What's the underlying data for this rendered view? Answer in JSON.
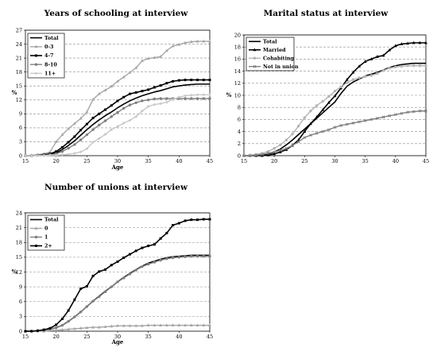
{
  "chart_data": [
    {
      "type": "line",
      "title": "Years of schooling at interview",
      "xlabel": "Age",
      "ylabel": "%",
      "xlim": [
        15,
        45
      ],
      "ylim": [
        0,
        27
      ],
      "x_ticks": [
        15,
        20,
        25,
        30,
        35,
        40,
        45
      ],
      "y_ticks": [
        0,
        3,
        6,
        9,
        12,
        15,
        18,
        21,
        24,
        27
      ],
      "grid": "horizontal dashed",
      "legend": "top-left",
      "series": [
        {
          "name": "Total",
          "color": "#000000",
          "marker": "none",
          "width": 1.6,
          "x": [
            15,
            16,
            17,
            18,
            19,
            20,
            21,
            22,
            23,
            24,
            25,
            26,
            27,
            28,
            29,
            30,
            31,
            32,
            33,
            34,
            35,
            36,
            37,
            38,
            39,
            40,
            41,
            42,
            43,
            44,
            45
          ],
          "values": [
            0,
            0,
            0.1,
            0.1,
            0.3,
            0.6,
            1.3,
            2.2,
            3.2,
            4.4,
            5.6,
            6.7,
            7.7,
            8.6,
            9.4,
            10.3,
            11.1,
            11.8,
            12.4,
            12.9,
            13.3,
            13.7,
            14.0,
            14.4,
            14.8,
            15.0,
            15.2,
            15.3,
            15.4,
            15.4,
            15.4
          ]
        },
        {
          "name": "0-3",
          "color": "#a6a6a6",
          "marker": "triangle",
          "width": 1.4,
          "x": [
            15,
            16,
            17,
            18,
            19,
            20,
            21,
            22,
            23,
            24,
            25,
            26,
            27,
            28,
            29,
            30,
            31,
            32,
            33,
            34,
            35,
            36,
            37,
            38,
            39,
            40,
            41,
            42,
            43,
            44,
            45
          ],
          "values": [
            0,
            0.1,
            0.2,
            0.4,
            0.8,
            3.0,
            4.5,
            5.8,
            6.9,
            8.0,
            9.4,
            12.1,
            13.3,
            14.1,
            14.9,
            16.0,
            16.9,
            17.9,
            18.9,
            20.4,
            20.9,
            21.1,
            21.3,
            22.6,
            23.6,
            23.9,
            24.3,
            24.5,
            24.6,
            24.6,
            24.6
          ]
        },
        {
          "name": "4-7",
          "color": "#000000",
          "marker": "square",
          "width": 1.6,
          "x": [
            15,
            16,
            17,
            18,
            19,
            20,
            21,
            22,
            23,
            24,
            25,
            26,
            27,
            28,
            29,
            30,
            31,
            32,
            33,
            34,
            35,
            36,
            37,
            38,
            39,
            40,
            41,
            42,
            43,
            44,
            45
          ],
          "values": [
            0,
            0,
            0.1,
            0.2,
            0.4,
            0.9,
            1.8,
            2.9,
            4.1,
            5.5,
            6.8,
            8.1,
            9.0,
            9.9,
            10.8,
            11.8,
            12.6,
            13.3,
            13.6,
            13.9,
            14.2,
            14.7,
            15.1,
            15.6,
            16.0,
            16.2,
            16.3,
            16.3,
            16.3,
            16.3,
            16.3
          ]
        },
        {
          "name": "8-10",
          "color": "#7f7f7f",
          "marker": "circle",
          "width": 1.4,
          "x": [
            15,
            16,
            17,
            18,
            19,
            20,
            21,
            22,
            23,
            24,
            25,
            26,
            27,
            28,
            29,
            30,
            31,
            32,
            33,
            34,
            35,
            36,
            37,
            38,
            39,
            40,
            41,
            42,
            43,
            44,
            45
          ],
          "values": [
            0,
            0,
            0.1,
            0.1,
            0.2,
            0.4,
            0.9,
            1.6,
            2.4,
            3.4,
            4.5,
            5.6,
            6.6,
            7.5,
            8.4,
            9.3,
            10.2,
            10.9,
            11.4,
            11.8,
            12.0,
            12.2,
            12.3,
            12.3,
            12.3,
            12.3,
            12.3,
            12.3,
            12.3,
            12.3,
            12.3
          ]
        },
        {
          "name": "11+",
          "color": "#c8c8c8",
          "marker": "diamond",
          "width": 1.4,
          "x": [
            15,
            16,
            17,
            18,
            19,
            20,
            21,
            22,
            23,
            24,
            25,
            26,
            27,
            28,
            29,
            30,
            31,
            32,
            33,
            34,
            35,
            36,
            37,
            38,
            39,
            40,
            41,
            42,
            43,
            44,
            45
          ],
          "values": [
            0,
            0,
            0,
            0,
            0.1,
            0.1,
            0.2,
            0.3,
            0.5,
            0.8,
            1.5,
            2.9,
            3.7,
            4.6,
            5.6,
            6.3,
            7.0,
            7.6,
            8.4,
            9.6,
            10.6,
            11.0,
            11.2,
            11.5,
            12.1,
            12.6,
            12.9,
            13.0,
            13.1,
            13.1,
            13.1
          ]
        }
      ]
    },
    {
      "type": "line",
      "title": "Marital status at interview",
      "xlabel": "",
      "ylabel": "%",
      "xlim": [
        15,
        45
      ],
      "ylim": [
        0,
        20
      ],
      "x_ticks": [
        15,
        20,
        25,
        30,
        35,
        40,
        45
      ],
      "y_ticks": [
        0,
        2,
        4,
        6,
        8,
        10,
        12,
        14,
        16,
        18,
        20
      ],
      "grid": "horizontal dashed",
      "legend": "top-left",
      "series": [
        {
          "name": "Total",
          "color": "#000000",
          "marker": "none",
          "width": 1.6,
          "x": [
            15,
            16,
            17,
            18,
            19,
            20,
            21,
            22,
            23,
            24,
            25,
            26,
            27,
            28,
            29,
            30,
            31,
            32,
            33,
            34,
            35,
            36,
            37,
            38,
            39,
            40,
            41,
            42,
            43,
            44,
            45
          ],
          "values": [
            0,
            0,
            0.1,
            0.1,
            0.3,
            0.6,
            1.1,
            1.8,
            2.6,
            3.5,
            4.4,
            5.3,
            6.2,
            7.1,
            8.0,
            8.9,
            10.3,
            11.5,
            12.2,
            12.7,
            13.2,
            13.5,
            13.8,
            14.2,
            14.6,
            14.9,
            15.1,
            15.2,
            15.3,
            15.3,
            15.3
          ]
        },
        {
          "name": "Married",
          "color": "#000000",
          "marker": "triangle",
          "width": 1.6,
          "x": [
            15,
            16,
            17,
            18,
            19,
            20,
            21,
            22,
            23,
            24,
            25,
            26,
            27,
            28,
            29,
            30,
            31,
            32,
            33,
            34,
            35,
            36,
            37,
            38,
            39,
            40,
            41,
            42,
            43,
            44,
            45
          ],
          "values": [
            0,
            0,
            0,
            0,
            0.1,
            0.3,
            0.6,
            1.0,
            1.7,
            2.6,
            4.0,
            5.3,
            6.4,
            7.6,
            8.8,
            9.9,
            11.2,
            12.6,
            13.8,
            14.8,
            15.6,
            16.0,
            16.4,
            16.6,
            17.5,
            18.2,
            18.5,
            18.6,
            18.7,
            18.7,
            18.7
          ]
        },
        {
          "name": "Cohabiting",
          "color": "#b4b4b4",
          "marker": "circle",
          "width": 1.4,
          "x": [
            15,
            16,
            17,
            18,
            19,
            20,
            21,
            22,
            23,
            24,
            25,
            26,
            27,
            28,
            29,
            30,
            31,
            32,
            33,
            34,
            35,
            36,
            37,
            38,
            39,
            40,
            41,
            42,
            43,
            44,
            45
          ],
          "values": [
            0,
            0.1,
            0.2,
            0.4,
            0.7,
            1.2,
            1.8,
            2.6,
            3.6,
            4.9,
            6.3,
            7.4,
            8.3,
            9.0,
            9.8,
            10.7,
            11.4,
            12.1,
            12.6,
            12.9,
            13.1,
            13.3,
            13.6,
            14.1,
            14.5,
            14.7,
            14.8,
            14.9,
            14.9,
            14.9,
            14.9
          ]
        },
        {
          "name": "Not in union",
          "color": "#7f7f7f",
          "marker": "x",
          "width": 1.4,
          "x": [
            15,
            16,
            17,
            18,
            19,
            20,
            21,
            22,
            23,
            24,
            25,
            26,
            27,
            28,
            29,
            30,
            31,
            32,
            33,
            34,
            35,
            36,
            37,
            38,
            39,
            40,
            41,
            42,
            43,
            44,
            45
          ],
          "values": [
            0,
            0,
            0.1,
            0.2,
            0.4,
            0.6,
            0.9,
            1.2,
            1.7,
            2.3,
            3.0,
            3.4,
            3.7,
            4.0,
            4.3,
            4.7,
            5.0,
            5.2,
            5.4,
            5.6,
            5.8,
            6.0,
            6.2,
            6.4,
            6.6,
            6.8,
            7.0,
            7.2,
            7.3,
            7.4,
            7.4
          ]
        }
      ]
    },
    {
      "type": "line",
      "title": "Number of unions at interview",
      "xlabel": "Age",
      "ylabel": "%",
      "xlim": [
        15,
        45
      ],
      "ylim": [
        0,
        24
      ],
      "x_ticks": [
        15,
        20,
        25,
        30,
        35,
        40,
        45
      ],
      "y_ticks": [
        0,
        3,
        6,
        9,
        12,
        15,
        18,
        21,
        24
      ],
      "grid": "horizontal dashed",
      "legend": "top-left",
      "series": [
        {
          "name": "Total",
          "color": "#000000",
          "marker": "none",
          "width": 1.6,
          "x": [
            15,
            16,
            17,
            18,
            19,
            20,
            21,
            22,
            23,
            24,
            25,
            26,
            27,
            28,
            29,
            30,
            31,
            32,
            33,
            34,
            35,
            36,
            37,
            38,
            39,
            40,
            41,
            42,
            43,
            44,
            45
          ],
          "values": [
            0,
            0,
            0.1,
            0.2,
            0.4,
            0.7,
            1.2,
            2.0,
            2.9,
            3.9,
            5.0,
            6.1,
            7.1,
            8.1,
            9.0,
            10.0,
            10.9,
            11.7,
            12.5,
            13.2,
            13.8,
            14.2,
            14.6,
            14.9,
            15.1,
            15.2,
            15.3,
            15.4,
            15.4,
            15.4,
            15.4
          ]
        },
        {
          "name": "0",
          "color": "#a6a6a6",
          "marker": "triangle",
          "width": 1.4,
          "x": [
            15,
            16,
            17,
            18,
            19,
            20,
            21,
            22,
            23,
            24,
            25,
            26,
            27,
            28,
            29,
            30,
            31,
            32,
            33,
            34,
            35,
            36,
            37,
            38,
            39,
            40,
            41,
            42,
            43,
            44,
            45
          ],
          "values": [
            0,
            0,
            0,
            0,
            0.1,
            0.2,
            0.3,
            0.4,
            0.5,
            0.6,
            0.7,
            0.8,
            0.8,
            0.9,
            1.0,
            1.1,
            1.1,
            1.1,
            1.1,
            1.1,
            1.2,
            1.2,
            1.2,
            1.2,
            1.2,
            1.2,
            1.2,
            1.2,
            1.2,
            1.2,
            1.2
          ]
        },
        {
          "name": "1",
          "color": "#7f7f7f",
          "marker": "circle",
          "width": 1.4,
          "x": [
            15,
            16,
            17,
            18,
            19,
            20,
            21,
            22,
            23,
            24,
            25,
            26,
            27,
            28,
            29,
            30,
            31,
            32,
            33,
            34,
            35,
            36,
            37,
            38,
            39,
            40,
            41,
            42,
            43,
            44,
            45
          ],
          "values": [
            0,
            0,
            0.1,
            0.2,
            0.4,
            0.7,
            1.2,
            2.0,
            2.9,
            3.9,
            5.0,
            6.1,
            7.0,
            8.0,
            9.0,
            10.0,
            10.8,
            11.6,
            12.4,
            13.1,
            13.6,
            14.0,
            14.4,
            14.7,
            14.9,
            15.0,
            15.1,
            15.2,
            15.2,
            15.2,
            15.2
          ]
        },
        {
          "name": "2+",
          "color": "#000000",
          "marker": "square",
          "width": 1.6,
          "x": [
            15,
            16,
            17,
            18,
            19,
            20,
            21,
            22,
            23,
            24,
            25,
            26,
            27,
            28,
            29,
            30,
            31,
            32,
            33,
            34,
            35,
            36,
            37,
            38,
            39,
            40,
            41,
            42,
            43,
            44,
            45
          ],
          "values": [
            0,
            0,
            0.1,
            0.3,
            0.6,
            1.3,
            2.5,
            4.2,
            6.4,
            8.6,
            9.1,
            11.2,
            12.1,
            12.5,
            13.4,
            14.1,
            14.9,
            15.6,
            16.3,
            16.9,
            17.3,
            17.6,
            18.8,
            19.9,
            21.5,
            21.9,
            22.4,
            22.6,
            22.6,
            22.7,
            22.7
          ]
        }
      ]
    }
  ]
}
